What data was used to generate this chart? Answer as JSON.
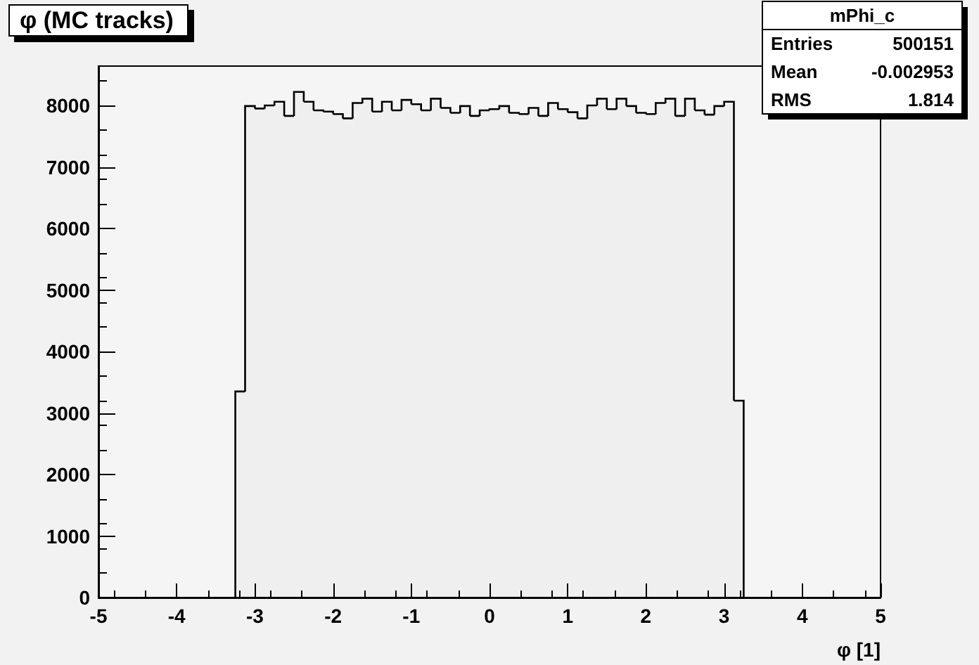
{
  "chart_data": {
    "type": "histogram",
    "title": "φ (MC tracks)",
    "xlabel": "φ [1]",
    "bins": [
      -3.25,
      -3.125,
      -3,
      -2.875,
      -2.75,
      -2.625,
      -2.5,
      -2.375,
      -2.25,
      -2.125,
      -2,
      -1.875,
      -1.75,
      -1.625,
      -1.5,
      -1.375,
      -1.25,
      -1.125,
      -1,
      -0.875,
      -0.75,
      -0.625,
      -0.5,
      -0.375,
      -0.25,
      -0.125,
      0,
      0.125,
      0.25,
      0.375,
      0.5,
      0.625,
      0.75,
      0.875,
      1,
      1.125,
      1.25,
      1.375,
      1.5,
      1.625,
      1.75,
      1.875,
      2,
      2.125,
      2.25,
      2.375,
      2.5,
      2.625,
      2.75,
      2.875,
      3,
      3.125,
      3.25
    ],
    "values": [
      3350,
      7990,
      7950,
      8000,
      8060,
      7830,
      8220,
      8060,
      7920,
      7900,
      7860,
      7790,
      8040,
      8110,
      7900,
      8060,
      7920,
      8090,
      8020,
      7920,
      8110,
      7960,
      7880,
      7990,
      7830,
      7920,
      7940,
      7990,
      7880,
      7860,
      7960,
      7830,
      8040,
      7940,
      7890,
      7790,
      8000,
      8110,
      7940,
      8110,
      7990,
      7880,
      7860,
      8040,
      8110,
      7830,
      8110,
      7920,
      7850,
      7990,
      8060,
      3200
    ],
    "color": "#000000",
    "xlim": [
      -5,
      5
    ],
    "xticks": [
      -5,
      -4,
      -3,
      -2,
      -1,
      0,
      1,
      2,
      3,
      4,
      5
    ],
    "ylim": [
      0,
      8640
    ],
    "yticks": [
      0,
      1000,
      2000,
      3000,
      4000,
      5000,
      6000,
      7000,
      8000
    ],
    "grid": false,
    "annotations": [
      "mPhi_c",
      "Entries",
      "500151",
      "Mean",
      "-0.002953",
      "RMS",
      "1.814"
    ]
  }
}
